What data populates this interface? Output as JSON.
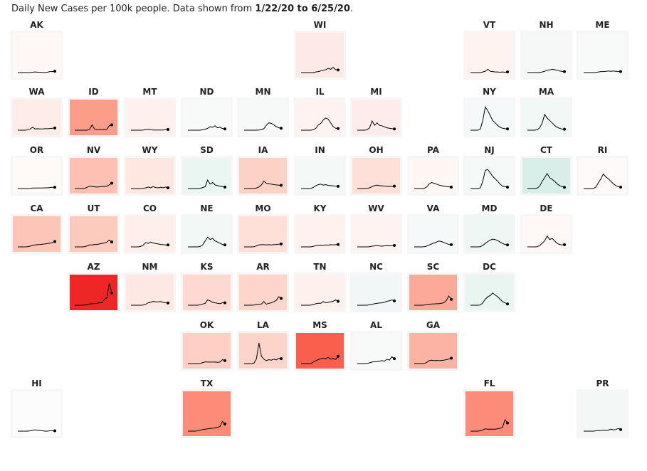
{
  "title": {
    "prefix": "Daily New Cases per 100k people. Data shown from ",
    "range": "1/22/20 to 6/25/20",
    "suffix": "."
  },
  "chart_data": {
    "type": "line",
    "title": "Daily New Cases per 100k people",
    "date_start": "1/22/20",
    "date_end": "6/25/20",
    "ylim": [
      0,
      100
    ],
    "states": [
      {
        "id": "AK",
        "color": "#fff8f6",
        "values": [
          0,
          0,
          0,
          0,
          0,
          0,
          1,
          2,
          1,
          1,
          0,
          0,
          1,
          3,
          3,
          4
        ]
      },
      {
        "id": "WI",
        "color": "#fdeae6",
        "values": [
          0,
          0,
          0,
          0,
          0,
          0,
          2,
          3,
          5,
          7,
          9,
          13,
          10,
          16,
          9,
          8
        ]
      },
      {
        "id": "VT",
        "color": "#fff3f0",
        "values": [
          0,
          0,
          0,
          0,
          0,
          2,
          4,
          10,
          4,
          3,
          2,
          2,
          1,
          2,
          1,
          2
        ]
      },
      {
        "id": "NH",
        "color": "#f6f8f7",
        "values": [
          0,
          0,
          0,
          0,
          0,
          0,
          2,
          4,
          7,
          8,
          10,
          9,
          7,
          5,
          4,
          3
        ]
      },
      {
        "id": "ME",
        "color": "#f8f9f9",
        "values": [
          0,
          0,
          0,
          0,
          0,
          0,
          2,
          3,
          3,
          4,
          5,
          4,
          5,
          4,
          4,
          3
        ]
      },
      {
        "id": "WA",
        "color": "#fdece7",
        "values": [
          0,
          0,
          0,
          0,
          2,
          5,
          12,
          5,
          6,
          5,
          5,
          6,
          6,
          7,
          8,
          9
        ]
      },
      {
        "id": "ID",
        "color": "#fc9d8a",
        "values": [
          0,
          0,
          0,
          0,
          0,
          0,
          3,
          22,
          5,
          3,
          2,
          3,
          3,
          4,
          18,
          22
        ]
      },
      {
        "id": "MT",
        "color": "#fef1ed",
        "values": [
          0,
          0,
          0,
          0,
          0,
          1,
          2,
          4,
          2,
          1,
          1,
          1,
          1,
          1,
          2,
          3
        ]
      },
      {
        "id": "ND",
        "color": "#f8faf9",
        "values": [
          0,
          0,
          0,
          0,
          0,
          0,
          2,
          4,
          8,
          14,
          12,
          18,
          10,
          12,
          7,
          5
        ]
      },
      {
        "id": "MN",
        "color": "#f7f9f8",
        "values": [
          0,
          0,
          0,
          0,
          0,
          0,
          1,
          3,
          6,
          20,
          30,
          28,
          22,
          15,
          10,
          8
        ]
      },
      {
        "id": "IL",
        "color": "#fef3f0",
        "values": [
          0,
          0,
          0,
          0,
          0,
          2,
          8,
          22,
          28,
          42,
          50,
          45,
          30,
          15,
          8,
          7
        ]
      },
      {
        "id": "MI",
        "color": "#feecea",
        "values": [
          0,
          0,
          0,
          0,
          2,
          10,
          38,
          20,
          30,
          20,
          18,
          14,
          10,
          8,
          6,
          5
        ]
      },
      {
        "id": "NY",
        "color": "#f5f9f9",
        "values": [
          0,
          0,
          0,
          0,
          5,
          40,
          95,
          80,
          60,
          40,
          30,
          20,
          12,
          8,
          6,
          5
        ]
      },
      {
        "id": "MA",
        "color": "#f1f8f6",
        "values": [
          0,
          0,
          0,
          0,
          2,
          10,
          30,
          65,
          50,
          40,
          30,
          20,
          12,
          8,
          5,
          4
        ]
      },
      {
        "id": "OR",
        "color": "#fff9f8",
        "values": [
          0,
          0,
          0,
          0,
          0,
          1,
          2,
          2,
          2,
          2,
          2,
          3,
          3,
          4,
          5,
          5
        ]
      },
      {
        "id": "NV",
        "color": "#fdc0b2",
        "values": [
          0,
          0,
          0,
          0,
          1,
          5,
          10,
          8,
          7,
          6,
          7,
          8,
          8,
          10,
          15,
          22
        ]
      },
      {
        "id": "WY",
        "color": "#fee6e1",
        "values": [
          0,
          0,
          0,
          0,
          0,
          1,
          3,
          6,
          3,
          8,
          4,
          3,
          5,
          3,
          6,
          3
        ]
      },
      {
        "id": "SD",
        "color": "#eaf6f2",
        "values": [
          0,
          0,
          0,
          0,
          0,
          1,
          4,
          8,
          35,
          18,
          25,
          15,
          12,
          10,
          8,
          6
        ]
      },
      {
        "id": "IA",
        "color": "#fdd2c6",
        "values": [
          0,
          0,
          0,
          0,
          0,
          2,
          6,
          15,
          30,
          22,
          20,
          18,
          16,
          15,
          14,
          13
        ]
      },
      {
        "id": "IN",
        "color": "#f4f9f8",
        "values": [
          0,
          0,
          0,
          0,
          1,
          5,
          12,
          16,
          18,
          14,
          16,
          13,
          12,
          11,
          10,
          9
        ]
      },
      {
        "id": "OH",
        "color": "#fee0d9",
        "values": [
          0,
          0,
          0,
          0,
          1,
          3,
          8,
          12,
          14,
          12,
          11,
          10,
          9,
          8,
          9,
          10
        ]
      },
      {
        "id": "PA",
        "color": "#fff7f4",
        "values": [
          0,
          0,
          0,
          0,
          1,
          6,
          18,
          25,
          22,
          18,
          14,
          12,
          10,
          8,
          7,
          6
        ]
      },
      {
        "id": "NJ",
        "color": "#f5f9f8",
        "values": [
          0,
          0,
          0,
          0,
          3,
          30,
          75,
          78,
          65,
          50,
          40,
          30,
          18,
          10,
          8,
          6
        ]
      },
      {
        "id": "CT",
        "color": "#d8efe9",
        "values": [
          0,
          0,
          0,
          0,
          2,
          10,
          30,
          45,
          62,
          45,
          38,
          30,
          20,
          12,
          8,
          5
        ]
      },
      {
        "id": "RI",
        "color": "#fffafa",
        "values": [
          0,
          0,
          0,
          0,
          1,
          6,
          25,
          40,
          60,
          48,
          40,
          30,
          20,
          12,
          8,
          6
        ]
      },
      {
        "id": "CA",
        "color": "#fdc5b8",
        "values": [
          0,
          0,
          0,
          0,
          1,
          3,
          6,
          8,
          9,
          10,
          11,
          12,
          14,
          15,
          18,
          22
        ]
      },
      {
        "id": "UT",
        "color": "#fdcbbe",
        "values": [
          0,
          0,
          0,
          0,
          1,
          4,
          8,
          8,
          10,
          10,
          12,
          14,
          16,
          20,
          28,
          20
        ]
      },
      {
        "id": "CO",
        "color": "#feefeb",
        "values": [
          0,
          0,
          0,
          0,
          2,
          8,
          18,
          14,
          20,
          16,
          14,
          12,
          10,
          9,
          8,
          8
        ]
      },
      {
        "id": "NE",
        "color": "#f1f8f6",
        "values": [
          0,
          0,
          0,
          0,
          0,
          2,
          8,
          25,
          40,
          30,
          35,
          25,
          20,
          15,
          10,
          8
        ]
      },
      {
        "id": "MO",
        "color": "#fee0d9",
        "values": [
          0,
          0,
          0,
          0,
          1,
          4,
          8,
          9,
          9,
          8,
          9,
          8,
          9,
          10,
          11,
          12
        ]
      },
      {
        "id": "KY",
        "color": "#fff1ee",
        "values": [
          0,
          0,
          0,
          0,
          0,
          2,
          5,
          6,
          7,
          6,
          8,
          7,
          9,
          8,
          9,
          10
        ]
      },
      {
        "id": "WV",
        "color": "#fff3f1",
        "values": [
          0,
          0,
          0,
          0,
          0,
          1,
          3,
          4,
          5,
          4,
          3,
          4,
          5,
          4,
          5,
          6
        ]
      },
      {
        "id": "VA",
        "color": "#f5f9f9",
        "values": [
          0,
          0,
          0,
          0,
          1,
          3,
          8,
          12,
          16,
          20,
          24,
          22,
          18,
          14,
          10,
          9
        ]
      },
      {
        "id": "MD",
        "color": "#eef7f3",
        "values": [
          0,
          0,
          0,
          0,
          1,
          6,
          14,
          22,
          28,
          32,
          30,
          26,
          20,
          14,
          10,
          8
        ]
      },
      {
        "id": "DE",
        "color": "#fff8f6",
        "values": [
          0,
          0,
          0,
          0,
          1,
          6,
          15,
          25,
          45,
          30,
          35,
          25,
          15,
          10,
          8,
          9
        ]
      },
      {
        "id": "AZ",
        "color": "#ef2626",
        "values": [
          0,
          0,
          0,
          0,
          1,
          3,
          5,
          6,
          7,
          8,
          10,
          10,
          25,
          30,
          90,
          50
        ]
      },
      {
        "id": "NM",
        "color": "#fee8e3",
        "values": [
          0,
          0,
          0,
          0,
          0,
          1,
          4,
          10,
          12,
          16,
          14,
          14,
          15,
          12,
          10,
          9
        ]
      },
      {
        "id": "KS",
        "color": "#fed9d2",
        "values": [
          0,
          0,
          0,
          0,
          0,
          2,
          5,
          8,
          22,
          18,
          12,
          10,
          8,
          6,
          10,
          10
        ]
      },
      {
        "id": "AR",
        "color": "#fdd5ca",
        "values": [
          0,
          0,
          0,
          0,
          1,
          3,
          4,
          5,
          15,
          4,
          8,
          10,
          14,
          20,
          35,
          28
        ]
      },
      {
        "id": "TN",
        "color": "#fef0ec",
        "values": [
          0,
          0,
          0,
          0,
          1,
          3,
          6,
          8,
          8,
          15,
          10,
          12,
          14,
          16,
          22,
          16
        ]
      },
      {
        "id": "NC",
        "color": "#f1f7f6",
        "values": [
          0,
          0,
          0,
          0,
          0,
          2,
          4,
          6,
          8,
          9,
          10,
          12,
          16,
          18,
          22,
          18
        ]
      },
      {
        "id": "SC",
        "color": "#fca99a",
        "values": [
          0,
          0,
          0,
          0,
          1,
          2,
          4,
          5,
          5,
          6,
          6,
          8,
          10,
          20,
          38,
          24
        ]
      },
      {
        "id": "DC",
        "color": "#e8f5f1",
        "values": [
          0,
          0,
          0,
          0,
          1,
          10,
          25,
          35,
          40,
          50,
          42,
          35,
          25,
          15,
          10,
          5
        ]
      },
      {
        "id": "OK",
        "color": "#fdcfc5",
        "values": [
          0,
          0,
          0,
          0,
          0,
          1,
          4,
          7,
          6,
          6,
          6,
          6,
          5,
          6,
          16,
          12
        ]
      },
      {
        "id": "LA",
        "color": "#fdd4ca",
        "values": [
          0,
          0,
          0,
          0,
          2,
          20,
          85,
          30,
          18,
          12,
          16,
          14,
          18,
          15,
          22,
          20
        ]
      },
      {
        "id": "MS",
        "color": "#fa5e4c",
        "values": [
          0,
          0,
          0,
          0,
          1,
          6,
          12,
          16,
          20,
          22,
          20,
          26,
          18,
          22,
          16,
          30
        ]
      },
      {
        "id": "AL",
        "color": "#f8faf9",
        "values": [
          0,
          0,
          0,
          0,
          1,
          3,
          6,
          8,
          8,
          10,
          12,
          10,
          18,
          14,
          28,
          20
        ]
      },
      {
        "id": "GA",
        "color": "#fcb3a4",
        "values": [
          0,
          0,
          0,
          0,
          1,
          4,
          12,
          14,
          12,
          13,
          12,
          13,
          14,
          16,
          18,
          22
        ]
      },
      {
        "id": "HI",
        "color": "#fcfcfc",
        "values": [
          0,
          0,
          0,
          0,
          0,
          1,
          3,
          4,
          3,
          2,
          1,
          0,
          0,
          1,
          1,
          1
        ]
      },
      {
        "id": "TX",
        "color": "#fc8c78",
        "values": [
          0,
          0,
          0,
          0,
          1,
          3,
          5,
          6,
          7,
          8,
          9,
          10,
          12,
          14,
          30,
          22
        ]
      },
      {
        "id": "FL",
        "color": "#fc8b79",
        "values": [
          0,
          0,
          0,
          0,
          1,
          4,
          7,
          6,
          6,
          6,
          6,
          7,
          9,
          12,
          35,
          25
        ]
      },
      {
        "id": "PR",
        "color": "#f3f8f7",
        "values": [
          0,
          0,
          0,
          0,
          0,
          1,
          2,
          2,
          3,
          2,
          3,
          6,
          4,
          5,
          8,
          5
        ]
      }
    ]
  }
}
